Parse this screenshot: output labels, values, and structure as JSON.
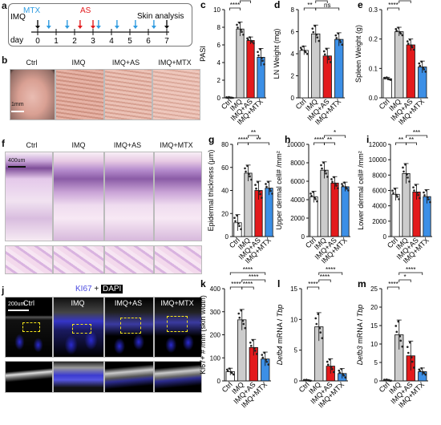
{
  "panels": {
    "a": {
      "label": "a",
      "day_label": "day",
      "days": [
        "0",
        "1",
        "2",
        "3",
        "4",
        "5",
        "6",
        "7"
      ],
      "imq": "IMQ",
      "mtx": "MTX",
      "as": "AS",
      "skin": "Skin analysis",
      "colors": {
        "mtx": "#2e9be0",
        "as": "#e31a1c"
      }
    },
    "b": {
      "label": "b",
      "groups": [
        "Ctrl",
        "IMQ",
        "IMQ+AS",
        "IMQ+MTX"
      ],
      "scale": "1mm"
    },
    "f": {
      "label": "f",
      "groups": [
        "Ctrl",
        "IMQ",
        "IMQ+AS",
        "IMQ+MTX"
      ],
      "scale": "400um"
    },
    "j": {
      "label": "j",
      "title_ki67": "KI67",
      "title_plus": " + ",
      "title_dapi": "DAPI",
      "groups": [
        "Ctrl",
        "IMQ",
        "IMQ+AS",
        "IMQ+MTX"
      ],
      "scale": "200um"
    }
  },
  "colors": {
    "ctrl": "#ffffff",
    "imq": "#cccccc",
    "as": "#e31a1c",
    "mtx": "#3c8fe6"
  },
  "chart_data": [
    {
      "id": "c",
      "label": "c",
      "type": "bar",
      "categories": [
        "Ctrl",
        "IMQ",
        "IMQ+AS",
        "IMQ+MTX"
      ],
      "values": [
        0,
        7.8,
        6.5,
        4.6
      ],
      "err": [
        0.1,
        0.8,
        0.4,
        1.0
      ],
      "ylabel": "PASI",
      "ylim": [
        0,
        10
      ],
      "yticks": [
        0,
        2,
        4,
        6,
        8,
        10
      ],
      "sig": [
        {
          "a": 0,
          "b": 1,
          "t": "****",
          "lvl": 0
        },
        {
          "a": 1,
          "b": 2,
          "t": "****",
          "lvl": 1
        }
      ]
    },
    {
      "id": "d",
      "label": "d",
      "type": "bar",
      "categories": [
        "Ctrl",
        "IMQ",
        "IMQ+AS",
        "IMQ+MTX"
      ],
      "values": [
        4.3,
        5.8,
        3.8,
        5.3
      ],
      "err": [
        0.4,
        0.8,
        0.7,
        0.6
      ],
      "ylabel": "LN Weight (mg)",
      "ylim": [
        0,
        8
      ],
      "yticks": [
        0,
        2,
        4,
        6,
        8
      ],
      "sig": [
        {
          "a": 0,
          "b": 1,
          "t": "**",
          "lvl": 0
        },
        {
          "a": 1,
          "b": 3,
          "t": "ns",
          "lvl": 0
        },
        {
          "a": 1,
          "b": 2,
          "t": "***",
          "lvl": 1
        }
      ]
    },
    {
      "id": "e",
      "label": "e",
      "type": "bar",
      "categories": [
        "Ctrl",
        "IMQ",
        "IMQ+AS",
        "IMQ+MTX"
      ],
      "values": [
        0.065,
        0.225,
        0.18,
        0.105
      ],
      "err": [
        0.005,
        0.015,
        0.02,
        0.02
      ],
      "ylabel": "Spleen Weight (g)",
      "ylim": [
        0,
        0.3
      ],
      "yticks": [
        0.0,
        0.1,
        0.2,
        0.3
      ],
      "sig": [
        {
          "a": 0,
          "b": 1,
          "t": "****",
          "lvl": 0
        },
        {
          "a": 1,
          "b": 2,
          "t": "***",
          "lvl": 1
        },
        {
          "a": 1,
          "b": 3,
          "t": "****",
          "lvl": 2
        }
      ]
    },
    {
      "id": "g",
      "label": "g",
      "type": "bar",
      "categories": [
        "Ctrl",
        "IMQ",
        "IMQ+AS",
        "IMQ+MTX"
      ],
      "values": [
        12,
        55,
        40,
        42
      ],
      "err": [
        7,
        7,
        8,
        6
      ],
      "ylabel": "Epidermal thickness (μm)",
      "ylim": [
        0,
        80
      ],
      "yticks": [
        0,
        20,
        40,
        60,
        80
      ],
      "sig": [
        {
          "a": 0,
          "b": 1,
          "t": "****",
          "lvl": 0
        },
        {
          "a": 1,
          "b": 3,
          "t": "**",
          "lvl": 0
        },
        {
          "a": 1,
          "b": 2,
          "t": "**",
          "lvl": 1
        }
      ]
    },
    {
      "id": "h",
      "label": "h",
      "type": "bar",
      "categories": [
        "Ctrl",
        "IMQ",
        "IMQ+AS",
        "IMQ+MTX"
      ],
      "values": [
        4300,
        7200,
        5800,
        5400
      ],
      "err": [
        600,
        900,
        700,
        500
      ],
      "ylabel": "Upper dermal cell# /mm²",
      "ylim": [
        0,
        10000
      ],
      "yticks": [
        0,
        2000,
        4000,
        6000,
        8000,
        10000
      ],
      "sig": [
        {
          "a": 0,
          "b": 1,
          "t": "****",
          "lvl": 0
        },
        {
          "a": 1,
          "b": 2,
          "t": "**",
          "lvl": 0
        },
        {
          "a": 1,
          "b": 3,
          "t": "*",
          "lvl": 1
        }
      ]
    },
    {
      "id": "i",
      "label": "i",
      "type": "bar",
      "categories": [
        "Ctrl",
        "IMQ",
        "IMQ+AS",
        "IMQ+MTX"
      ],
      "values": [
        5500,
        8200,
        5800,
        5200
      ],
      "err": [
        800,
        1300,
        1000,
        900
      ],
      "ylabel": "Lower dermal cell# /mm²",
      "ylim": [
        0,
        12000
      ],
      "yticks": [
        0,
        2000,
        4000,
        6000,
        8000,
        10000,
        12000
      ],
      "sig": [
        {
          "a": 0,
          "b": 1,
          "t": "**",
          "lvl": 0
        },
        {
          "a": 1,
          "b": 2,
          "t": "**",
          "lvl": 0
        },
        {
          "a": 1,
          "b": 3,
          "t": "***",
          "lvl": 1
        }
      ]
    },
    {
      "id": "k",
      "label": "k",
      "type": "bar",
      "categories": [
        "Ctrl",
        "IMQ",
        "IMQ+AS",
        "IMQ+MTX"
      ],
      "values": [
        40,
        265,
        145,
        95
      ],
      "err": [
        15,
        45,
        35,
        30
      ],
      "ylabel": "Ki67+ # /mm (skin width)",
      "ylim": [
        0,
        400
      ],
      "yticks": [
        0,
        100,
        200,
        300,
        400
      ],
      "sig": [
        {
          "a": 0,
          "b": 1,
          "t": "****",
          "lvl": 0
        },
        {
          "a": 1,
          "b": 2,
          "t": "****",
          "lvl": 0
        },
        {
          "a": 1,
          "b": 3,
          "t": "****",
          "lvl": 1
        },
        {
          "a": 0,
          "b": 3,
          "t": "****",
          "lvl": 2
        }
      ]
    },
    {
      "id": "l",
      "label": "l",
      "type": "bar",
      "categories": [
        "Ctrl",
        "IMQ",
        "IMQ+AS",
        "IMQ+MTX"
      ],
      "values": [
        0.1,
        8.8,
        2.4,
        1.2
      ],
      "err": [
        0.1,
        2.3,
        1.2,
        0.8
      ],
      "ylabel_italic": "Defb4",
      "ylabel_rest": " mRNA / ",
      "ylabel_italic2": "Tbp",
      "ylim": [
        0,
        15
      ],
      "yticks": [
        0,
        5,
        10,
        15
      ],
      "sig": [
        {
          "a": 0,
          "b": 1,
          "t": "****",
          "lvl": 0
        },
        {
          "a": 1,
          "b": 2,
          "t": "****",
          "lvl": 1
        },
        {
          "a": 1,
          "b": 3,
          "t": "****",
          "lvl": 2
        }
      ]
    },
    {
      "id": "m",
      "label": "m",
      "type": "bar",
      "categories": [
        "Ctrl",
        "IMQ",
        "IMQ+AS",
        "IMQ+MTX"
      ],
      "values": [
        0.2,
        12.5,
        6.8,
        2.5
      ],
      "err": [
        0.2,
        4.0,
        4.0,
        1.0
      ],
      "ylabel_italic": "Defb3",
      "ylabel_rest": " mRNA / ",
      "ylabel_italic2": "Tbp",
      "ylim": [
        0,
        25
      ],
      "yticks": [
        0,
        5,
        10,
        15,
        20,
        25
      ],
      "sig": [
        {
          "a": 0,
          "b": 1,
          "t": "****",
          "lvl": 0
        },
        {
          "a": 1,
          "b": 2,
          "t": "*",
          "lvl": 1
        },
        {
          "a": 1,
          "b": 3,
          "t": "****",
          "lvl": 2
        }
      ]
    }
  ]
}
